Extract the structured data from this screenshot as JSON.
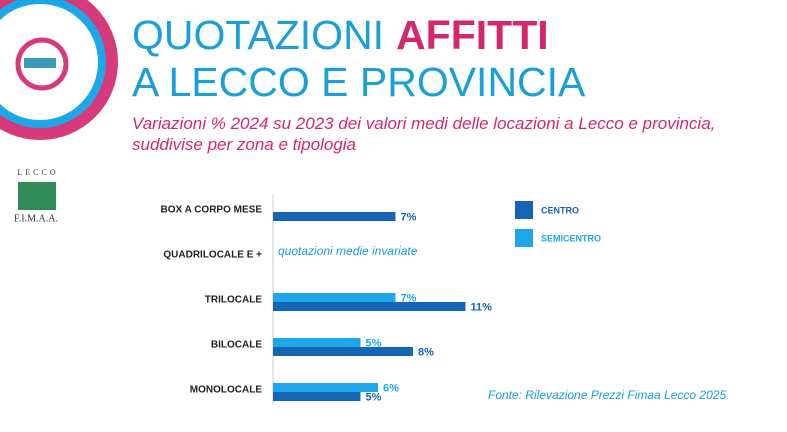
{
  "header": {
    "title_line1": "QUOTAZIONI",
    "title_highlight": "AFFITTI",
    "title_line2": "A LECCO E PROVINCIA",
    "subtitle": "Variazioni % 2024 su 2023 dei valori medi delle locazioni a Lecco e provincia, suddivise per zona e tipologia"
  },
  "logo": {
    "top": "LECCO",
    "bottom": "F.I.M.A.A."
  },
  "chart_data": {
    "type": "hbar",
    "categories": [
      "BOX A CORPO MESE",
      "QUADRILOCALE E +",
      "TRILOCALE",
      "BILOCALE",
      "MONOLOCALE"
    ],
    "series": [
      {
        "name": "CENTRO",
        "color": "#1565b5",
        "values": [
          7,
          null,
          11,
          8,
          5
        ],
        "value_labels": [
          "7%",
          null,
          "11%",
          "8%",
          "5%"
        ]
      },
      {
        "name": "SEMICENTRO",
        "color": "#1ea7e8",
        "values": [
          null,
          null,
          7,
          5,
          6
        ],
        "value_labels": [
          null,
          null,
          "7%",
          "5%",
          "6%"
        ]
      }
    ],
    "annotation": "quotazioni medie invariate",
    "source": "Fonte: Rilevazione Prezzi Fimaa Lecco 2025"
  }
}
